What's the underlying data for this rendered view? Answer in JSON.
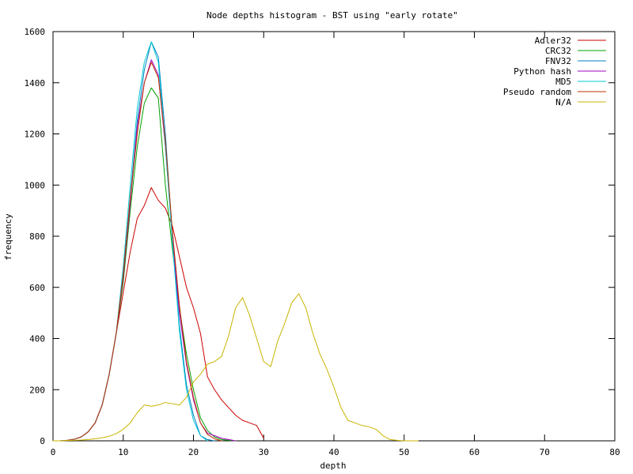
{
  "chart_data": {
    "type": "line",
    "title": "Node depths histogram - BST using \"early rotate\"",
    "xlabel": "depth",
    "ylabel": "frequency",
    "xlim": [
      0,
      80
    ],
    "ylim": [
      0,
      1600
    ],
    "x_ticks": [
      0,
      10,
      20,
      30,
      40,
      50,
      60,
      70,
      80
    ],
    "y_ticks": [
      0,
      200,
      400,
      600,
      800,
      1000,
      1200,
      1400,
      1600
    ],
    "grid": false,
    "legend_position": "top-right",
    "series": [
      {
        "name": "Adler32",
        "color": "#cc0000",
        "x": [
          0,
          1,
          2,
          3,
          4,
          5,
          6,
          7,
          8,
          9,
          10,
          11,
          12,
          13,
          14,
          15,
          16,
          17,
          18,
          19,
          20,
          21,
          22,
          23,
          24,
          25,
          26,
          27,
          28,
          29,
          30
        ],
        "y": [
          0,
          0,
          2,
          6,
          15,
          35,
          70,
          140,
          260,
          420,
          580,
          740,
          870,
          920,
          990,
          940,
          910,
          840,
          720,
          600,
          520,
          420,
          250,
          200,
          160,
          130,
          100,
          80,
          70,
          60,
          10
        ]
      },
      {
        "name": "CRC32",
        "color": "#00a000",
        "x": [
          0,
          1,
          2,
          3,
          4,
          5,
          6,
          7,
          8,
          9,
          10,
          11,
          12,
          13,
          14,
          15,
          16,
          17,
          18,
          19,
          20,
          21,
          22,
          23,
          24,
          25,
          26
        ],
        "y": [
          0,
          0,
          2,
          6,
          15,
          35,
          70,
          140,
          260,
          420,
          620,
          900,
          1150,
          1320,
          1380,
          1340,
          1000,
          750,
          520,
          340,
          200,
          90,
          40,
          15,
          5,
          2,
          0
        ]
      },
      {
        "name": "FNV32",
        "color": "#0080c0",
        "x": [
          0,
          1,
          2,
          3,
          4,
          5,
          6,
          7,
          8,
          9,
          10,
          11,
          12,
          13,
          14,
          15,
          16,
          17,
          18,
          19,
          20,
          21,
          22,
          23
        ],
        "y": [
          0,
          0,
          2,
          6,
          15,
          35,
          70,
          140,
          260,
          420,
          650,
          950,
          1250,
          1450,
          1560,
          1500,
          1200,
          800,
          450,
          220,
          100,
          20,
          5,
          0
        ]
      },
      {
        "name": "Python hash",
        "color": "#a000c0",
        "x": [
          0,
          1,
          2,
          3,
          4,
          5,
          6,
          7,
          8,
          9,
          10,
          11,
          12,
          13,
          14,
          15,
          16,
          17,
          18,
          19,
          20,
          21,
          22,
          23,
          24,
          25,
          26
        ],
        "y": [
          0,
          0,
          2,
          6,
          15,
          35,
          70,
          140,
          260,
          420,
          640,
          930,
          1230,
          1400,
          1490,
          1430,
          1150,
          800,
          500,
          300,
          160,
          70,
          30,
          20,
          10,
          5,
          0
        ]
      },
      {
        "name": "MD5",
        "color": "#00c8d8",
        "x": [
          0,
          1,
          2,
          3,
          4,
          5,
          6,
          7,
          8,
          9,
          10,
          11,
          12,
          13,
          14,
          15,
          16,
          17,
          18,
          19,
          20,
          21,
          22
        ],
        "y": [
          0,
          0,
          2,
          6,
          15,
          35,
          70,
          140,
          260,
          420,
          680,
          1000,
          1300,
          1480,
          1560,
          1480,
          1150,
          780,
          430,
          200,
          80,
          20,
          0
        ]
      },
      {
        "name": "Pseudo random",
        "color": "#c03000",
        "x": [
          0,
          1,
          2,
          3,
          4,
          5,
          6,
          7,
          8,
          9,
          10,
          11,
          12,
          13,
          14,
          15,
          16,
          17,
          18,
          19,
          20,
          21,
          22,
          23,
          24
        ],
        "y": [
          0,
          0,
          2,
          6,
          15,
          35,
          70,
          140,
          260,
          420,
          650,
          950,
          1200,
          1400,
          1480,
          1420,
          1170,
          820,
          530,
          310,
          170,
          70,
          25,
          8,
          0
        ]
      },
      {
        "name": "N/A",
        "color": "#c8b400",
        "x": [
          0,
          1,
          2,
          3,
          4,
          5,
          6,
          7,
          8,
          9,
          10,
          11,
          12,
          13,
          14,
          15,
          16,
          17,
          18,
          19,
          20,
          21,
          22,
          23,
          24,
          25,
          26,
          27,
          28,
          29,
          30,
          31,
          32,
          33,
          34,
          35,
          36,
          37,
          38,
          39,
          40,
          41,
          42,
          43,
          44,
          45,
          46,
          47,
          48,
          49,
          50,
          51,
          52
        ],
        "y": [
          0,
          0,
          1,
          2,
          3,
          5,
          8,
          12,
          18,
          28,
          45,
          70,
          110,
          140,
          135,
          140,
          150,
          145,
          140,
          170,
          230,
          260,
          300,
          310,
          330,
          410,
          520,
          560,
          490,
          400,
          310,
          290,
          390,
          460,
          540,
          575,
          520,
          420,
          340,
          280,
          210,
          130,
          80,
          70,
          60,
          55,
          45,
          20,
          5,
          2,
          0,
          0,
          0
        ]
      }
    ]
  }
}
